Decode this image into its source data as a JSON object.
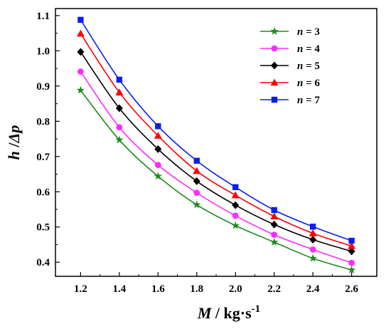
{
  "chart_data": {
    "type": "line",
    "xlabel": "M / kg·s-1",
    "xlabel_parts": {
      "var": "M",
      "unit": " / kg·s",
      "exp": "-1"
    },
    "ylabel": "h / Δp",
    "ylabel_parts": {
      "a": "h",
      "sep": " /",
      "b": "Δ",
      "c": "p"
    },
    "x": [
      1.2,
      1.4,
      1.6,
      1.8,
      2.0,
      2.2,
      2.4,
      2.6
    ],
    "x_tick_labels": [
      "1.2",
      "1.4",
      "1.6",
      "1.8",
      "2.0",
      "2.2",
      "2.4",
      "2.6"
    ],
    "xlim": [
      1.07,
      2.73
    ],
    "y_ticks": [
      0.4,
      0.5,
      0.6,
      0.7,
      0.8,
      0.9,
      1.0,
      1.1
    ],
    "y_tick_labels": [
      "0.4",
      "0.5",
      "0.6",
      "0.7",
      "0.8",
      "0.9",
      "1.0",
      "1.1"
    ],
    "ylim": [
      0.36,
      1.12
    ],
    "grid": false,
    "legend_position": "top-right",
    "series": [
      {
        "name": "n = 3",
        "legend_var": "n",
        "legend_val": " = 3",
        "color": "#1e8a1e",
        "marker": "star",
        "values": [
          0.888,
          0.747,
          0.644,
          0.563,
          0.504,
          0.457,
          0.411,
          0.378
        ]
      },
      {
        "name": "n = 4",
        "legend_var": "n",
        "legend_val": " = 4",
        "color": "#ff2bff",
        "marker": "circle",
        "values": [
          0.941,
          0.783,
          0.676,
          0.597,
          0.532,
          0.478,
          0.436,
          0.398
        ]
      },
      {
        "name": "n = 5",
        "legend_var": "n",
        "legend_val": " = 5",
        "color": "#000000",
        "marker": "diamond",
        "values": [
          0.997,
          0.837,
          0.721,
          0.63,
          0.562,
          0.507,
          0.464,
          0.431
        ]
      },
      {
        "name": "n = 6",
        "legend_var": "n",
        "legend_val": " = 6",
        "color": "#ff0000",
        "marker": "triangle",
        "values": [
          1.049,
          0.882,
          0.759,
          0.659,
          0.59,
          0.53,
          0.482,
          0.446
        ]
      },
      {
        "name": "n = 7",
        "legend_var": "n",
        "legend_val": " = 7",
        "color": "#0a1ef0",
        "marker": "square",
        "values": [
          1.088,
          0.918,
          0.786,
          0.688,
          0.613,
          0.548,
          0.501,
          0.461
        ]
      }
    ]
  }
}
